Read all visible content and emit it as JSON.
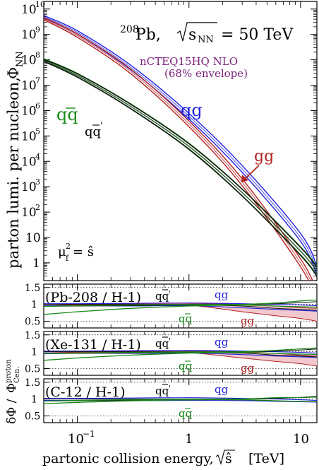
{
  "chart_data": [
    {
      "type": "line",
      "title_nucleus": "208",
      "title_nucleus_symbol": "Pb,",
      "title_sqrt_label": "s",
      "title_sqrt_sub": "NN",
      "title_value": "= 50 TeV",
      "pdf_label": "nCTEQ15HQ NLO",
      "envelope_label": "(68% envelope)",
      "scale_label": "μ",
      "scale_sub": "f",
      "scale_sup": "2",
      "scale_value": "= ŝ",
      "ylabel": "parton lumi. per nucleon,",
      "ylabel_symbol": "Φ",
      "ylabel_sub": "NN",
      "xscale": "log",
      "yscale": "log",
      "xlim": [
        0.05,
        14
      ],
      "ylim": [
        0.2,
        20000000000.0
      ],
      "y_tick_labels": [
        "1",
        "10",
        "10",
        "10",
        "10",
        "10",
        "10",
        "10",
        "10",
        "10",
        "10"
      ],
      "y_tick_exponents": [
        "",
        "",
        "2",
        "3",
        "4",
        "5",
        "6",
        "7",
        "8",
        "9",
        "10"
      ],
      "series_labels": {
        "qg": "qg",
        "gg": "gg",
        "qqbar": "qq",
        "qqbarprime": "qq"
      },
      "series": [
        {
          "name": "qg",
          "color": "#1f1fdd",
          "x": [
            0.05,
            0.1,
            0.3,
            1,
            3,
            10,
            14
          ],
          "y": [
            5000000000.0,
            1200000000.0,
            50000000.0,
            600000.0,
            5000.0,
            10,
            0.5
          ]
        },
        {
          "name": "gg",
          "color": "#b22222",
          "x": [
            0.05,
            0.1,
            0.3,
            1,
            3,
            10,
            14
          ],
          "y": [
            4200000000.0,
            900000000.0,
            35000000.0,
            300000.0,
            1500.0,
            1,
            0.05
          ]
        },
        {
          "name": "qq̄",
          "color": "#1a8a1a",
          "x": [
            0.05,
            0.1,
            0.3,
            1,
            3,
            10,
            14
          ],
          "y": [
            100000000.0,
            25000000.0,
            1500000.0,
            40000.0,
            600,
            3,
            0.5
          ]
        },
        {
          "name": "qq̄'",
          "color": "#111111",
          "x": [
            0.05,
            0.1,
            0.3,
            1,
            3,
            10,
            14
          ],
          "y": [
            95000000.0,
            24000000.0,
            1450000.0,
            38000.0,
            580,
            2.8,
            0.45
          ]
        }
      ]
    },
    {
      "type": "line",
      "panel_label": "(Pb-208 / H-1)",
      "labels": {
        "qqbarprime": "qq",
        "qg": "qg",
        "qqbar": "qq",
        "gg": "gg"
      },
      "ylim": [
        0.3,
        1.6
      ],
      "y_tick_labels": [
        "1.5",
        "1",
        "0.5"
      ]
    },
    {
      "type": "line",
      "panel_label": "(Xe-131 / H-1)",
      "labels": {
        "qqbarprime": "qq",
        "qg": "qg",
        "qqbar": "qq",
        "gg": "gg"
      },
      "ylim": [
        0.3,
        1.6
      ],
      "y_tick_labels": [
        "1.5",
        "1",
        "0.5"
      ]
    },
    {
      "type": "line",
      "panel_label": "(C-12 / H-1)",
      "labels": {
        "qqbarprime": "qq",
        "qg": "qg",
        "qqbar": "qq"
      },
      "ylim": [
        0.3,
        1.6
      ],
      "y_tick_labels": [
        "1.5",
        "1",
        "0.5"
      ]
    }
  ],
  "ratio_ylabel": {
    "delta": "δΦ /",
    "phi": "Φ",
    "sup": "proton",
    "sub": "Cen."
  },
  "x_axis": {
    "tick_label_base": "10",
    "tick_label_exp": "−1",
    "tick_labels": [
      "1",
      "10"
    ],
    "label": "partonic collision energy,",
    "label_sqrt": "ŝ",
    "label_unit": "[TeV]"
  }
}
